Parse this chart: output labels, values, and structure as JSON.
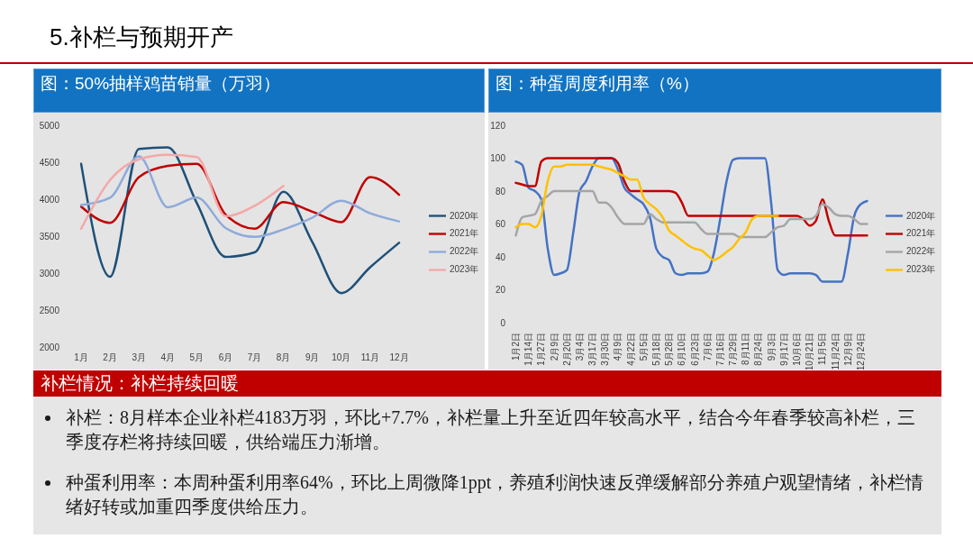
{
  "chart_data": [
    {
      "type": "other",
      "title": "5.补栏与预期开产"
    },
    {
      "type": "line",
      "title": "图：50%抽样鸡苗销量（万羽）",
      "categories": [
        "1月",
        "2月",
        "3月",
        "4月",
        "5月",
        "6月",
        "7月",
        "8月",
        "9月",
        "10月",
        "11月",
        "12月"
      ],
      "series": [
        {
          "name": "2020年",
          "color": "#1f5078",
          "values": [
            4480,
            2950,
            4680,
            4700,
            3950,
            3220,
            3280,
            4100,
            3420,
            2730,
            3080,
            3410
          ]
        },
        {
          "name": "2021年",
          "color": "#c00000",
          "values": [
            3900,
            3680,
            4300,
            4450,
            4480,
            3790,
            3600,
            3960,
            3830,
            3690,
            4300,
            4060
          ]
        },
        {
          "name": "2022年",
          "color": "#8eaadb",
          "values": [
            3920,
            4020,
            4580,
            3890,
            4020,
            3610,
            3490,
            3590,
            3750,
            3980,
            3810,
            3700
          ]
        },
        {
          "name": "2023年",
          "color": "#f4a8a8",
          "values": [
            3600,
            4260,
            4540,
            4600,
            4570,
            3770,
            3910,
            4180,
            null,
            null,
            null,
            null
          ]
        }
      ],
      "ylim": [
        2000,
        5000
      ],
      "yticks": [
        2000,
        2500,
        3000,
        3500,
        4000,
        4500,
        5000
      ],
      "legend": "right"
    },
    {
      "type": "line",
      "title": "图：种蛋周度利用率（%）",
      "categories": [
        "1月2日",
        null,
        "1月14日",
        null,
        "1月27日",
        null,
        "2月9日",
        null,
        "2月20日",
        null,
        "3月4日",
        null,
        "3月17日",
        null,
        "3月30日",
        null,
        "4月9日",
        null,
        "4月22日",
        null,
        "5月5日",
        null,
        "5月18日",
        null,
        "5月28日",
        null,
        "6月10日",
        null,
        "6月23日",
        null,
        "7月6日",
        null,
        "7月16日",
        null,
        "7月29日",
        null,
        "8月11日",
        null,
        "8月24日",
        null,
        "9月3日",
        null,
        "9月17日",
        null,
        "10月6日",
        null,
        "10月21日",
        null,
        "11月5日",
        null,
        "11月24日",
        null,
        "12月9日",
        null,
        "12月24日",
        null
      ],
      "series": [
        {
          "name": "2020年",
          "color": "#4472c4",
          "values": [
            98,
            96,
            82,
            80,
            75,
            45,
            29,
            30,
            32,
            55,
            80,
            86,
            95,
            100,
            100,
            100,
            93,
            82,
            78,
            75,
            72,
            64,
            45,
            40,
            38,
            30,
            29,
            30,
            30,
            30,
            31,
            42,
            63,
            86,
            99,
            100,
            100,
            100,
            100,
            100,
            72,
            32,
            29,
            30,
            30,
            30,
            30,
            29,
            25,
            25,
            25,
            25,
            42,
            65,
            72,
            74
          ]
        },
        {
          "name": "2021年",
          "color": "#c00000",
          "values": [
            85,
            84,
            83,
            83,
            98,
            100,
            100,
            100,
            100,
            100,
            100,
            100,
            100,
            100,
            100,
            100,
            97,
            86,
            80,
            80,
            80,
            80,
            80,
            80,
            80,
            79,
            73,
            65,
            65,
            65,
            65,
            65,
            65,
            65,
            65,
            65,
            65,
            65,
            65,
            65,
            65,
            65,
            65,
            65,
            65,
            63,
            59,
            62,
            75,
            62,
            53,
            53,
            53,
            53,
            53,
            53
          ]
        },
        {
          "name": "2022年",
          "color": "#a5a5a5",
          "values": [
            53,
            64,
            65,
            66,
            74,
            77,
            80,
            80,
            80,
            80,
            80,
            80,
            80,
            73,
            73,
            70,
            64,
            60,
            60,
            60,
            60,
            66,
            63,
            61,
            61,
            61,
            61,
            61,
            61,
            57,
            54,
            54,
            54,
            54,
            54,
            52,
            52,
            52,
            52,
            52,
            55,
            58,
            59,
            63,
            63,
            63,
            63,
            65,
            72,
            70,
            66,
            65,
            65,
            63,
            60,
            60
          ]
        },
        {
          "name": "2023年",
          "color": "#ffc000",
          "values": [
            58,
            60,
            60,
            58,
            65,
            86,
            95,
            95,
            96,
            96,
            96,
            96,
            96,
            95,
            94,
            93,
            91,
            89,
            87,
            87,
            76,
            72,
            69,
            64,
            56,
            53,
            50,
            47,
            45,
            44,
            41,
            38,
            40,
            43,
            46,
            51,
            55,
            63,
            65,
            65,
            65,
            65,
            null,
            null,
            null,
            null,
            null,
            null,
            null,
            null,
            null,
            null,
            null,
            null,
            null,
            null
          ]
        }
      ],
      "ylim": [
        0,
        120
      ],
      "yticks": [
        0,
        20,
        40,
        60,
        80,
        100,
        120
      ],
      "legend": "right"
    },
    {
      "type": "other",
      "title": "补栏情况：补栏持续回暖",
      "annotations": [
        "补栏：8月样本企业补栏4183万羽，环比+7.7%，补栏量上升至近四年较高水平，结合今年春季较高补栏，三季度存栏将持续回暖，供给端压力渐增。",
        "种蛋利用率：本周种蛋利用率64%，环比上周微降1ppt，养殖利润快速反弹缓解部分养殖户观望情绪，补栏情绪好转或加重四季度供给压力。"
      ]
    }
  ]
}
